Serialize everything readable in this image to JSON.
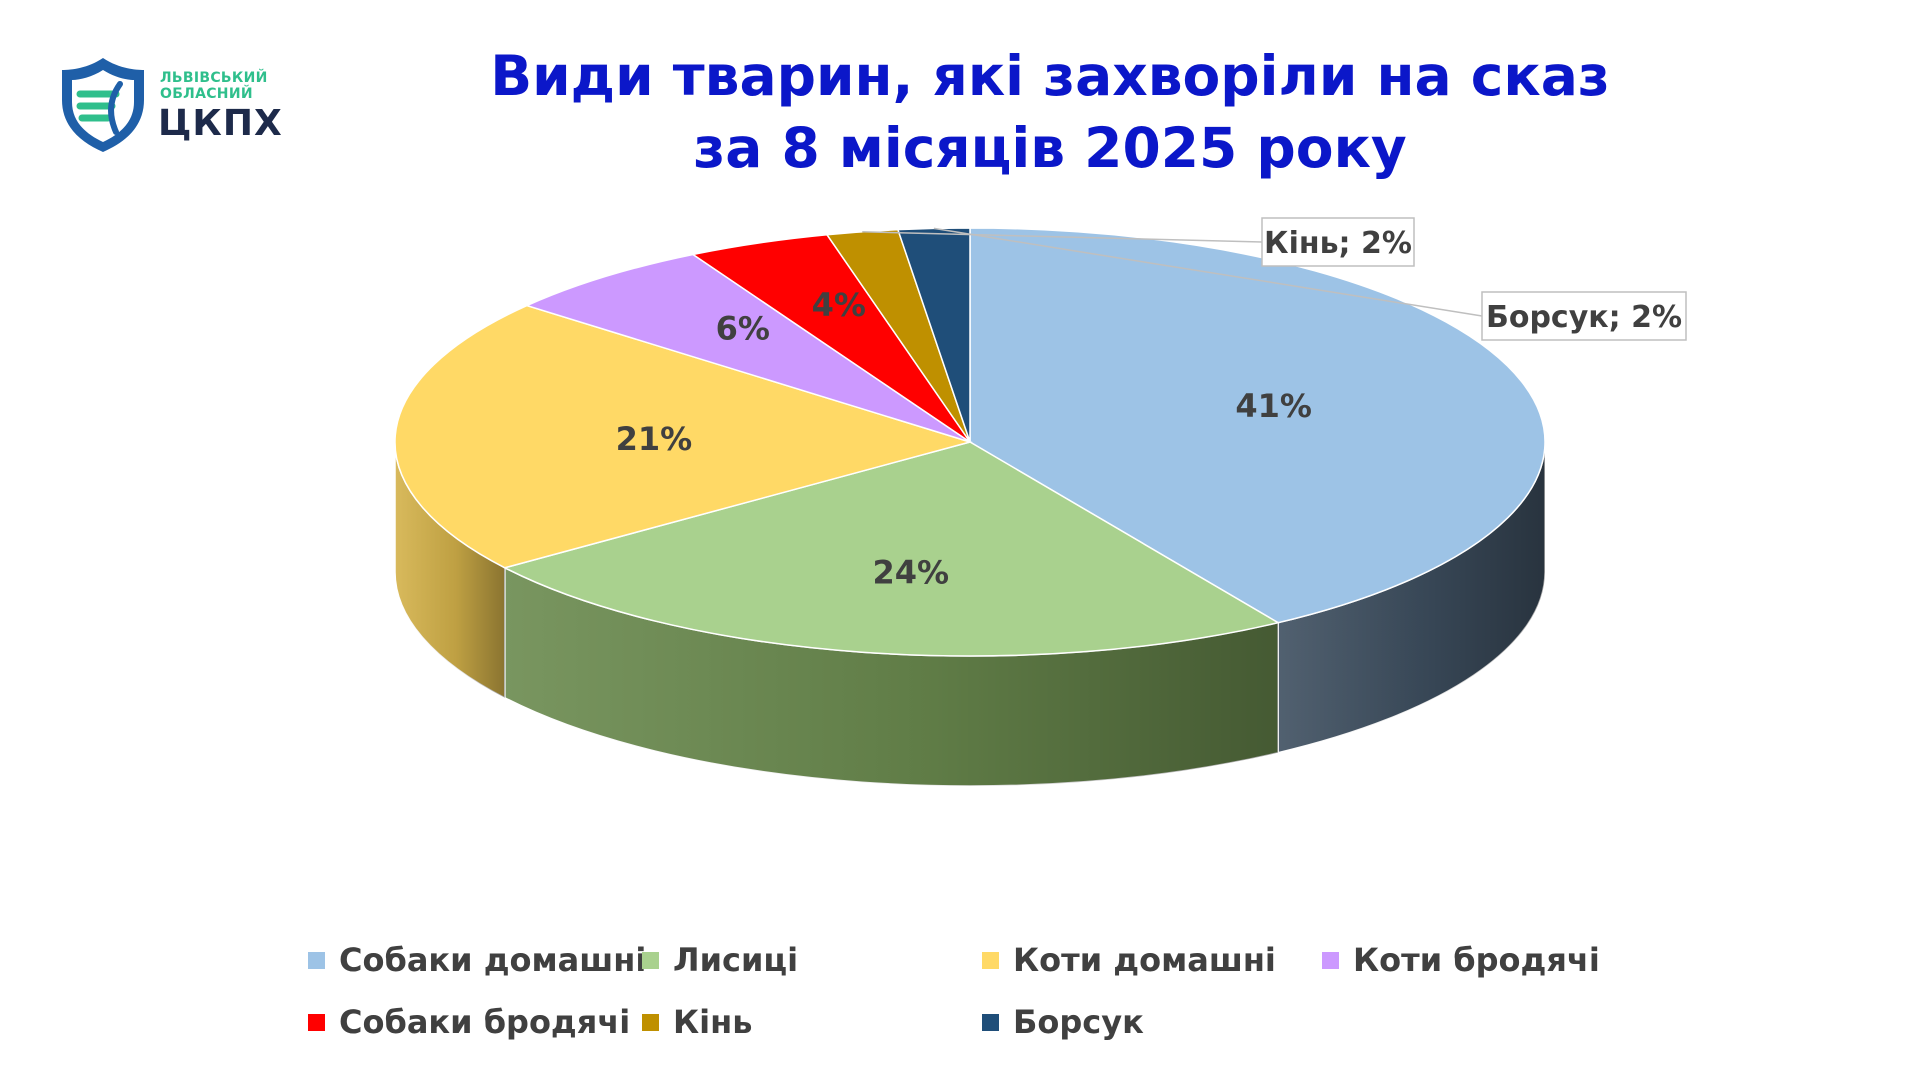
{
  "logo": {
    "line1": "ЛЬВІВСЬКИЙ",
    "line2": "ОБЛАСНИЙ",
    "main": "ЦКПХ"
  },
  "chart_data": {
    "type": "pie",
    "title": [
      "Види тварин, які захворіли на сказ",
      "за 8 місяців 2025 року"
    ],
    "categories": [
      "Собаки домашні",
      "Лисиці",
      "Коти домашні",
      "Коти бродячі",
      "Собаки бродячі",
      "Кінь",
      "Борсук"
    ],
    "values": [
      41,
      24,
      21,
      6,
      4,
      2,
      2
    ],
    "data_labels": [
      "41%",
      "24%",
      "21%",
      "6%",
      "4%",
      "Кінь; 2%",
      "Борсук; 2%"
    ],
    "colors": [
      "#9dc3e6",
      "#a9d18e",
      "#ffd966",
      "#cc99ff",
      "#ff0000",
      "#bf9000",
      "#1f4e79"
    ],
    "side_colors": [
      "#3e4f60",
      "#6a8a4e",
      "#d4b24a",
      "#9a70c8",
      "#b00000",
      "#8a6800",
      "#163a5c"
    ],
    "style": "3d-pie",
    "legend_position": "bottom"
  }
}
